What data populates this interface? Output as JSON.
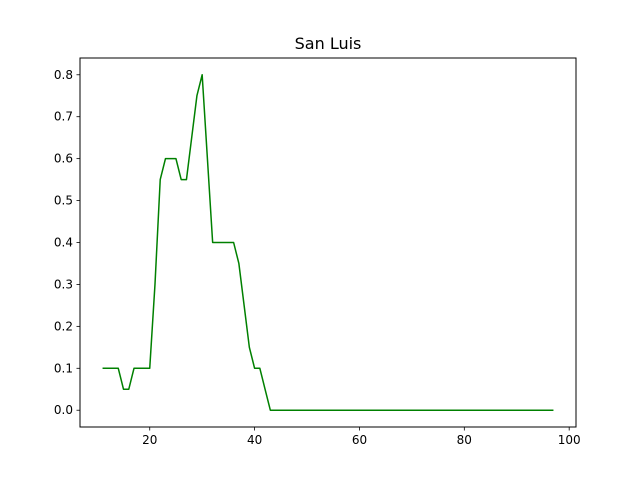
{
  "chart_data": {
    "type": "line",
    "title": "San Luis",
    "xlabel": "",
    "ylabel": "",
    "xlim": [
      6.7,
      101.3
    ],
    "ylim": [
      -0.04,
      0.84
    ],
    "xticks": [
      20,
      40,
      60,
      80,
      100
    ],
    "xtick_labels": [
      "20",
      "40",
      "60",
      "80",
      "100"
    ],
    "yticks": [
      0.0,
      0.1,
      0.2,
      0.3,
      0.4,
      0.5,
      0.6,
      0.7,
      0.8
    ],
    "ytick_labels": [
      "0.0",
      "0.1",
      "0.2",
      "0.3",
      "0.4",
      "0.5",
      "0.6",
      "0.7",
      "0.8"
    ],
    "grid": false,
    "legend": false,
    "series": [
      {
        "color": "#008000",
        "x": [
          11,
          12,
          13,
          14,
          15,
          16,
          17,
          18,
          19,
          20,
          21,
          22,
          23,
          24,
          25,
          26,
          27,
          28,
          29,
          30,
          31,
          32,
          33,
          34,
          35,
          36,
          37,
          38,
          39,
          40,
          41,
          42,
          43,
          44,
          45,
          46,
          47,
          48,
          49,
          50,
          51,
          52,
          53,
          54,
          55,
          56,
          57,
          58,
          59,
          60,
          61,
          62,
          63,
          64,
          65,
          66,
          67,
          68,
          69,
          70,
          71,
          72,
          73,
          74,
          75,
          76,
          77,
          78,
          79,
          80,
          81,
          82,
          83,
          84,
          85,
          86,
          87,
          88,
          89,
          90,
          91,
          92,
          93,
          94,
          95,
          96,
          97
        ],
        "y": [
          0.1,
          0.1,
          0.1,
          0.1,
          0.05,
          0.05,
          0.1,
          0.1,
          0.1,
          0.1,
          0.3,
          0.55,
          0.6,
          0.6,
          0.6,
          0.55,
          0.55,
          0.65,
          0.75,
          0.8,
          0.6,
          0.4,
          0.4,
          0.4,
          0.4,
          0.4,
          0.35,
          0.25,
          0.15,
          0.1,
          0.1,
          0.05,
          0.0,
          0.0,
          0.0,
          0.0,
          0.0,
          0.0,
          0.0,
          0.0,
          0.0,
          0.0,
          0.0,
          0.0,
          0.0,
          0.0,
          0.0,
          0.0,
          0.0,
          0.0,
          0.0,
          0.0,
          0.0,
          0.0,
          0.0,
          0.0,
          0.0,
          0.0,
          0.0,
          0.0,
          0.0,
          0.0,
          0.0,
          0.0,
          0.0,
          0.0,
          0.0,
          0.0,
          0.0,
          0.0,
          0.0,
          0.0,
          0.0,
          0.0,
          0.0,
          0.0,
          0.0,
          0.0,
          0.0,
          0.0,
          0.0,
          0.0,
          0.0,
          0.0,
          0.0,
          0.0,
          0.0
        ]
      }
    ]
  }
}
